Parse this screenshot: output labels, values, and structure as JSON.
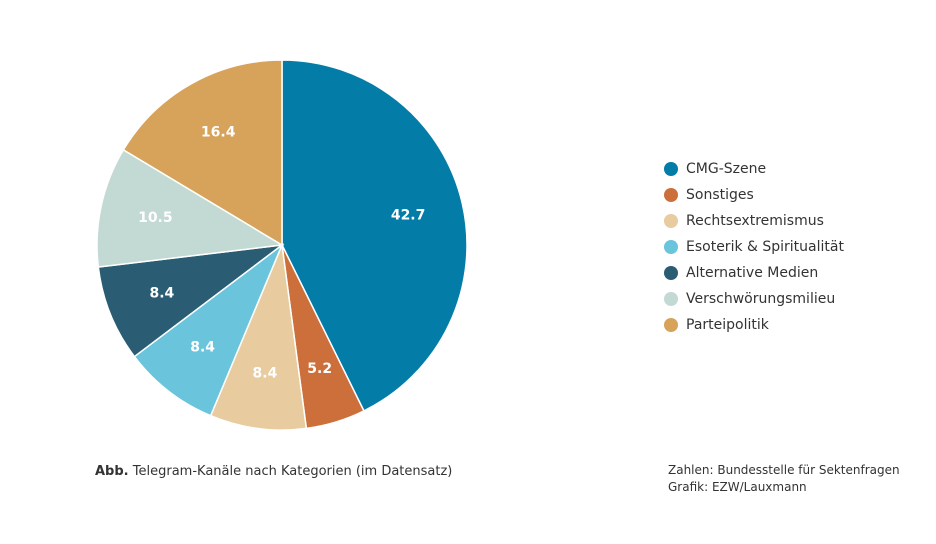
{
  "chart_data": {
    "type": "pie",
    "categories": [
      "CMG-Szene",
      "Sonstiges",
      "Rechtsextremismus",
      "Esoterik & Spiritualität",
      "Alternative Medien",
      "Verschwörungsmilieu",
      "Parteipolitik"
    ],
    "values": [
      42.7,
      5.2,
      8.4,
      8.4,
      8.4,
      10.5,
      16.4
    ],
    "labels": [
      "42.7",
      "5.2",
      "8.4",
      "8.4",
      "8.4",
      "10.5",
      "16.4"
    ],
    "colors": [
      "#037ca8",
      "#cc6f3b",
      "#e8cb9e",
      "#69c4dc",
      "#2a5d73",
      "#c3d9d4",
      "#d7a25a"
    ],
    "start_angle": "12 o'clock",
    "direction": "clockwise",
    "legend_position": "right"
  },
  "caption": {
    "prefix": "Abb.",
    "text": "Telegram-Kanäle nach Kategorien (im Datensatz)"
  },
  "credits": {
    "line1": "Zahlen: Bundesstelle für Sektenfragen",
    "line2": "Grafik: EZW/Lauxmann"
  }
}
